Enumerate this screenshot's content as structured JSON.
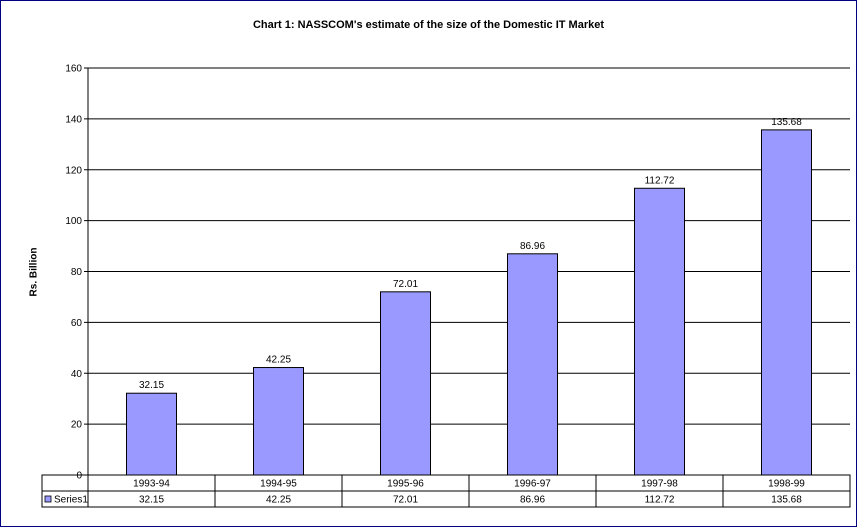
{
  "chart_data": {
    "type": "bar",
    "title": "Chart 1: NASSCOM's estimate of the size of the Domestic IT Market",
    "xlabel": "",
    "ylabel": "Rs. Billion",
    "categories": [
      "1993-94",
      "1994-95",
      "1995-96",
      "1996-97",
      "1997-98",
      "1998-99"
    ],
    "series": [
      {
        "name": "Series1",
        "values": [
          32.15,
          42.25,
          72.01,
          86.96,
          112.72,
          135.68
        ],
        "labels": [
          "32.15",
          "42.25",
          "72.01",
          "86.96",
          "112.72",
          "135.68"
        ]
      }
    ],
    "ylim": [
      0,
      160
    ],
    "yticks": [
      0,
      20,
      40,
      60,
      80,
      100,
      120,
      140,
      160
    ],
    "grid": true,
    "legend": "data-table-left",
    "data_table": true,
    "colors": {
      "bar": "#9999ff",
      "bar_border": "#000000",
      "grid": "#000000",
      "frame": "#000080"
    }
  }
}
